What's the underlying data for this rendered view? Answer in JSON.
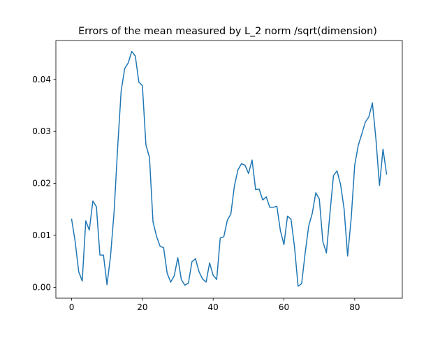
{
  "chart_data": {
    "type": "line",
    "title": "Errors of the mean measured by L_2 norm /sqrt(dimension)",
    "xlabel": "",
    "ylabel": "",
    "xlim": [
      -4.45,
      93.45
    ],
    "ylim": [
      -0.0021,
      0.0475
    ],
    "x_ticks": [
      0,
      20,
      40,
      60,
      80
    ],
    "x_tick_labels": [
      "0",
      "20",
      "40",
      "60",
      "80"
    ],
    "y_ticks": [
      0.0,
      0.01,
      0.02,
      0.03,
      0.04
    ],
    "y_tick_labels": [
      "0.00",
      "0.01",
      "0.02",
      "0.03",
      "0.04"
    ],
    "grid": false,
    "legend": "none",
    "series": [
      {
        "color": "#1f77b4",
        "x": [
          0,
          1,
          2,
          3,
          4,
          5,
          6,
          7,
          8,
          9,
          10,
          11,
          12,
          13,
          14,
          15,
          16,
          17,
          18,
          19,
          20,
          21,
          22,
          23,
          24,
          25,
          26,
          27,
          28,
          29,
          30,
          31,
          32,
          33,
          34,
          35,
          36,
          37,
          38,
          39,
          40,
          41,
          42,
          43,
          44,
          45,
          46,
          47,
          48,
          49,
          50,
          51,
          52,
          53,
          54,
          55,
          56,
          57,
          58,
          59,
          60,
          61,
          62,
          63,
          64,
          65,
          66,
          67,
          68,
          69,
          70,
          71,
          72,
          73,
          74,
          75,
          76,
          77,
          78,
          79,
          80,
          81,
          82,
          83,
          84,
          85,
          86,
          87,
          88,
          89
        ],
        "values": [
          0.0131,
          0.0088,
          0.003,
          0.0012,
          0.0128,
          0.011,
          0.0166,
          0.0155,
          0.0062,
          0.0062,
          0.0005,
          0.006,
          0.0145,
          0.0268,
          0.0378,
          0.0421,
          0.0432,
          0.0454,
          0.0445,
          0.0395,
          0.0388,
          0.0274,
          0.025,
          0.0126,
          0.0098,
          0.0079,
          0.0076,
          0.0027,
          0.001,
          0.0022,
          0.0057,
          0.0015,
          0.0004,
          0.0008,
          0.0049,
          0.0055,
          0.003,
          0.0016,
          0.001,
          0.0047,
          0.0023,
          0.0015,
          0.0095,
          0.0097,
          0.0129,
          0.0141,
          0.0195,
          0.0226,
          0.0238,
          0.0235,
          0.0219,
          0.0245,
          0.0188,
          0.0189,
          0.0168,
          0.0174,
          0.0154,
          0.0154,
          0.0156,
          0.0109,
          0.0082,
          0.0137,
          0.0131,
          0.0077,
          0.0002,
          0.0007,
          0.0066,
          0.0118,
          0.0142,
          0.0182,
          0.017,
          0.0088,
          0.0066,
          0.0142,
          0.0215,
          0.0224,
          0.0198,
          0.0151,
          0.006,
          0.0132,
          0.0235,
          0.0273,
          0.0295,
          0.0318,
          0.0328,
          0.0355,
          0.0285,
          0.0196,
          0.0266,
          0.0218
        ]
      }
    ]
  }
}
